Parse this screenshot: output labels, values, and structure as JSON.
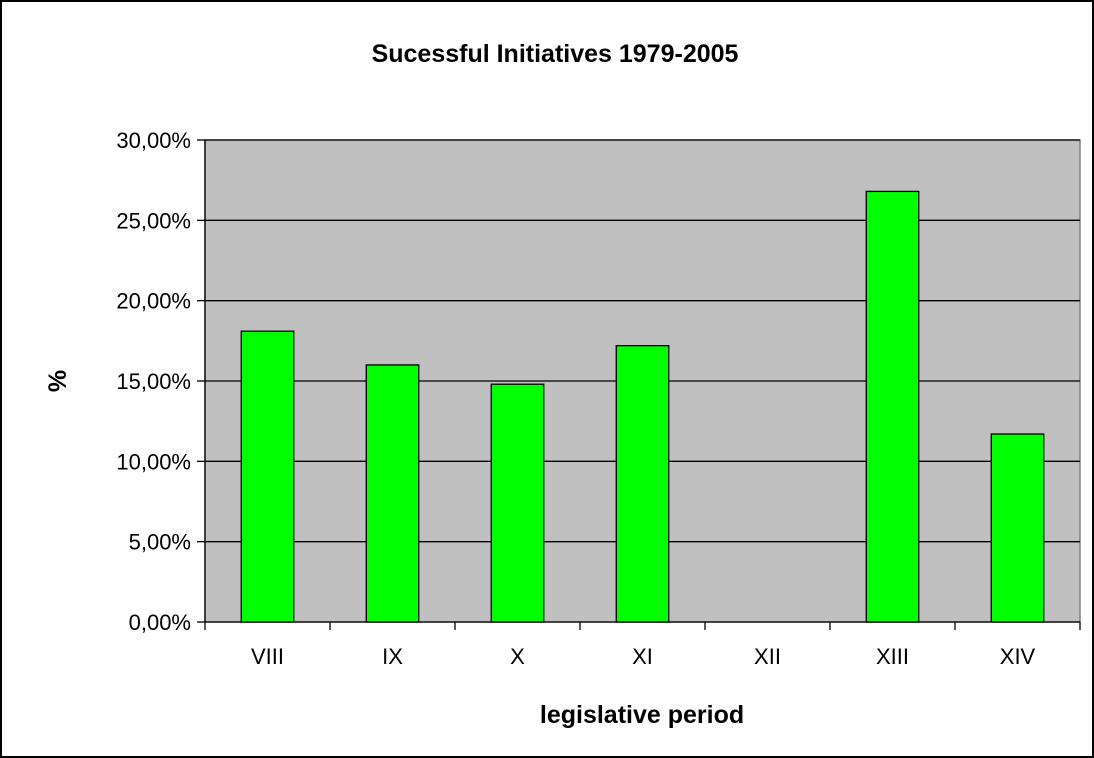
{
  "chart_data": {
    "type": "bar",
    "title": "Sucessful Initiatives 1979-2005",
    "xlabel": "legislative period",
    "ylabel": "%",
    "categories": [
      "VIII",
      "IX",
      "X",
      "XI",
      "XII",
      "XIII",
      "XIV"
    ],
    "values": [
      18.1,
      16.0,
      14.8,
      17.2,
      0,
      26.8,
      11.7
    ],
    "ylim": [
      0,
      30
    ],
    "yticks": [
      0,
      5,
      10,
      15,
      20,
      25,
      30
    ],
    "ytick_labels": [
      "0,00%",
      "5,00%",
      "10,00%",
      "15,00%",
      "20,00%",
      "25,00%",
      "30,00%"
    ],
    "grid": true,
    "legend": "none"
  },
  "colors": {
    "bar_fill": "#00ff00",
    "plot_background": "#c0c0c0",
    "gridline": "#000000"
  }
}
